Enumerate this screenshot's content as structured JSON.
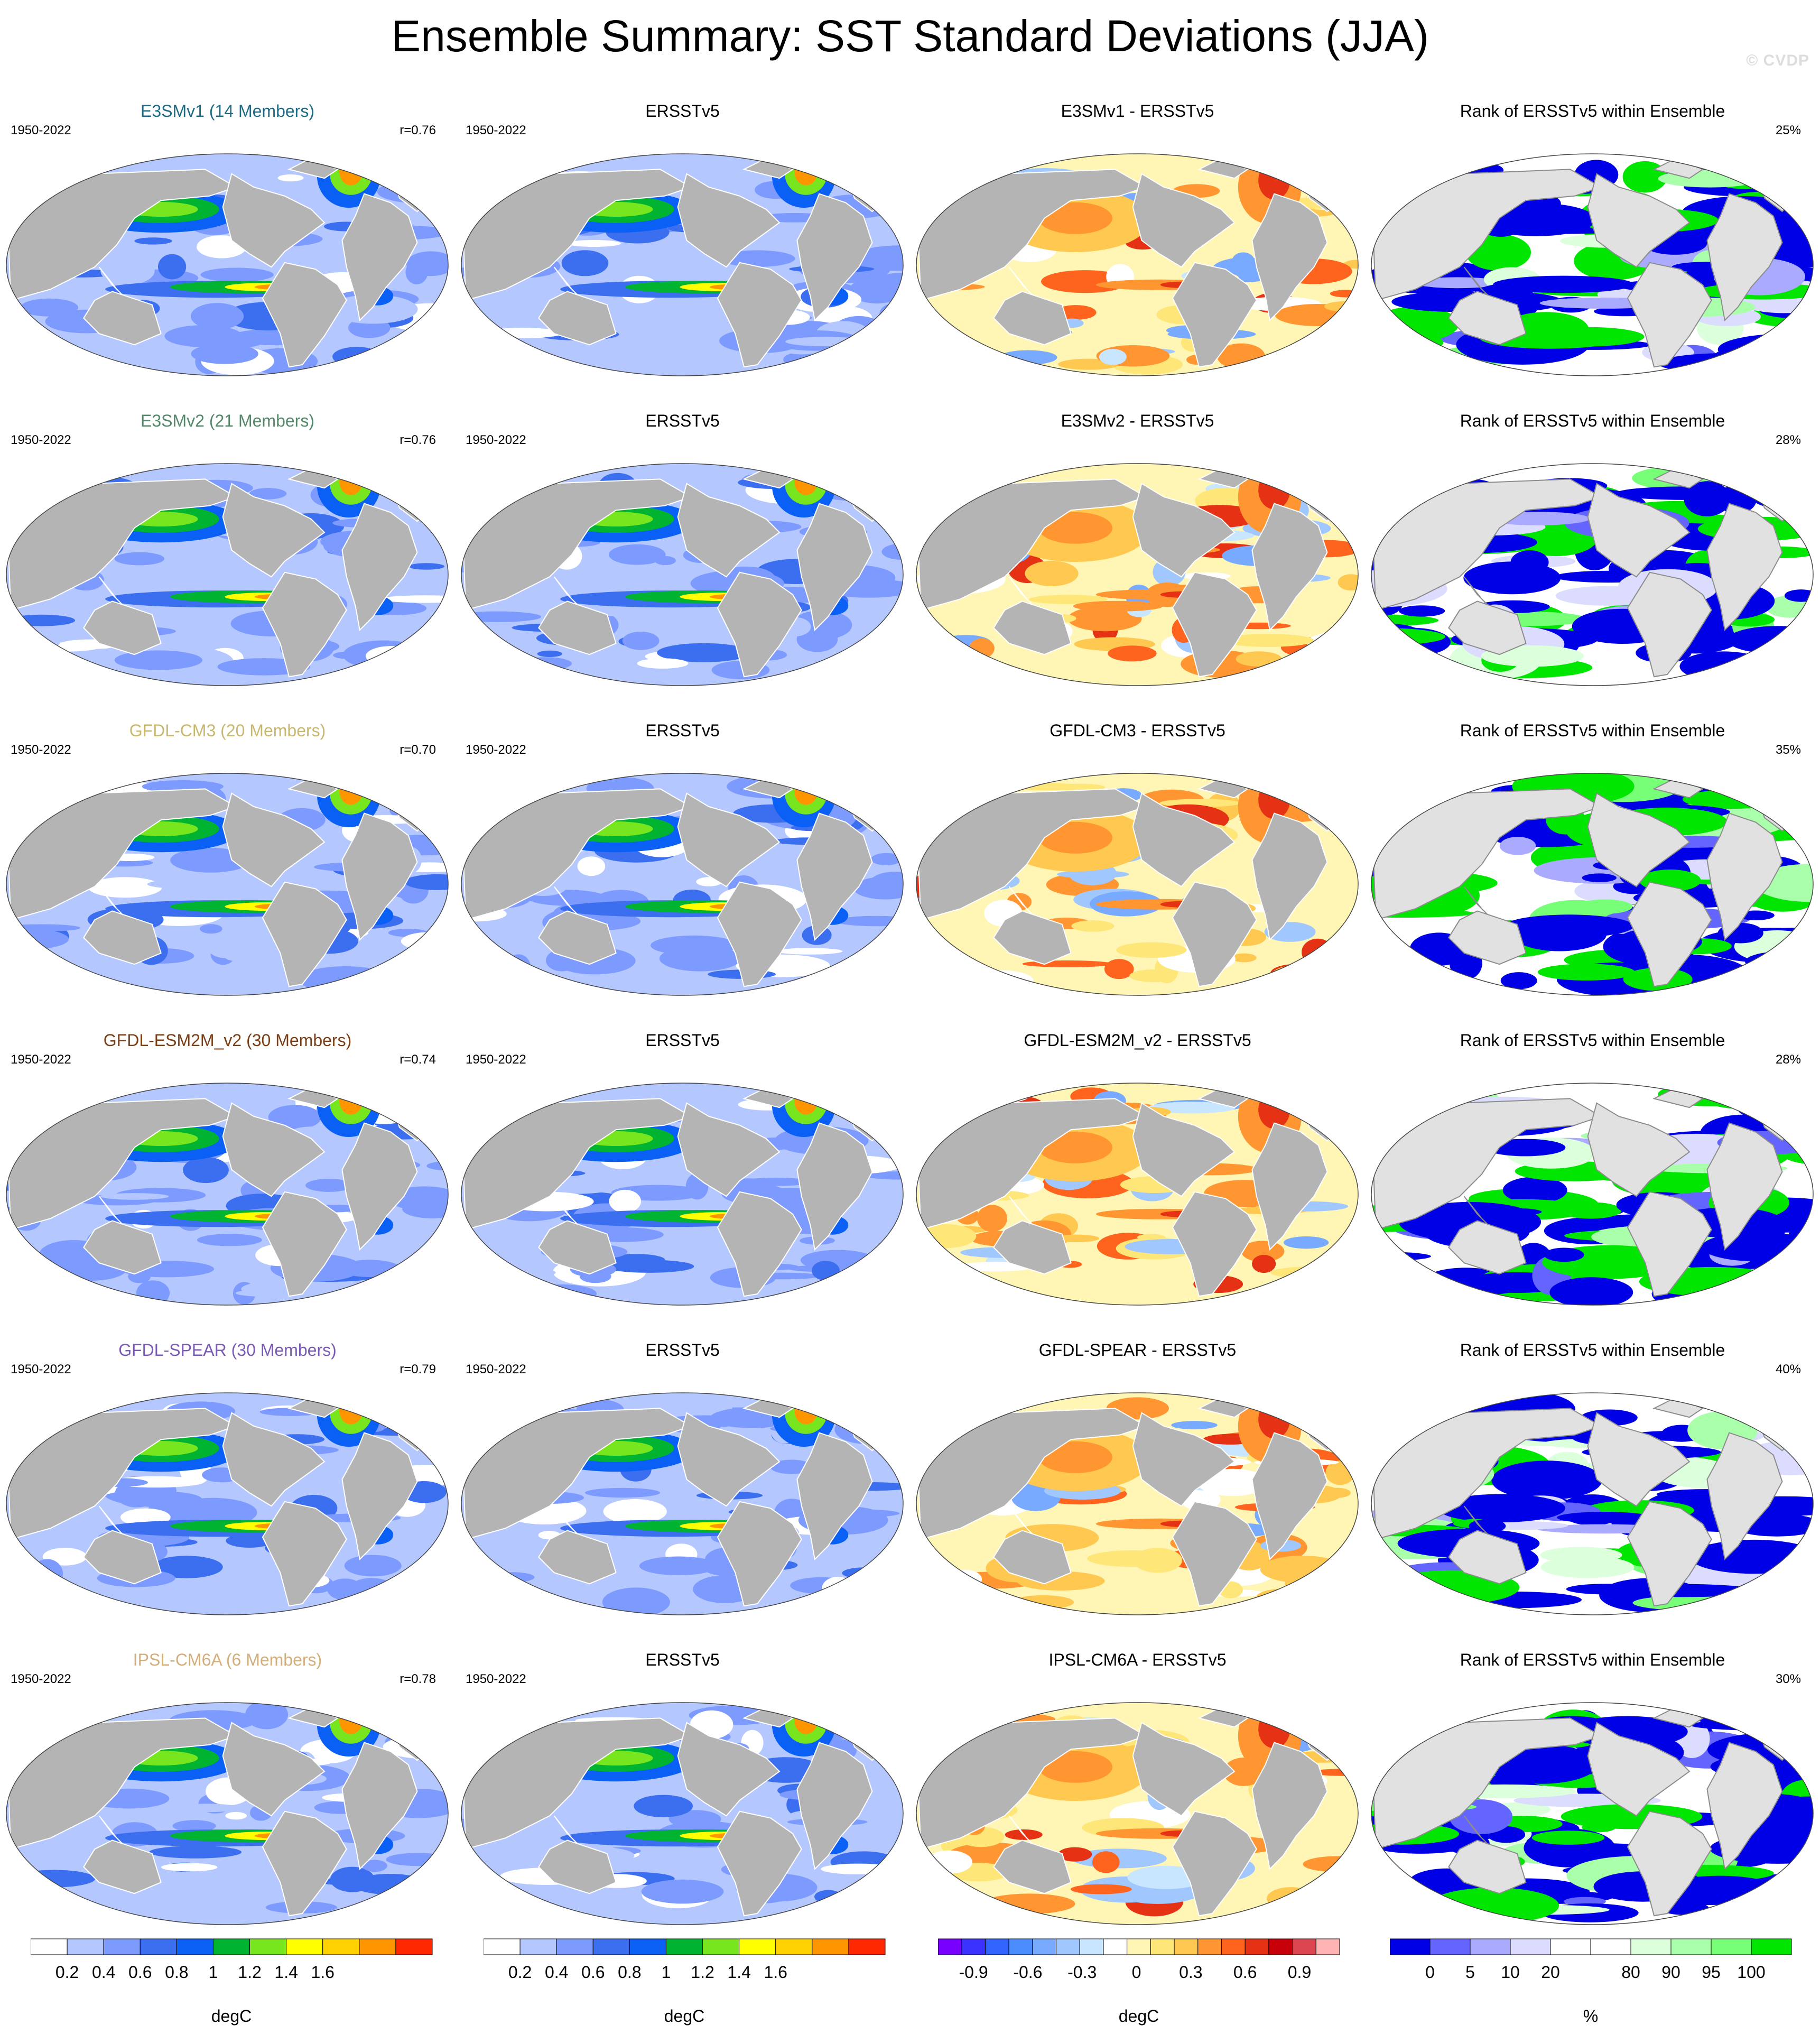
{
  "title": "Ensemble Summary: SST Standard Deviations (JJA)",
  "watermark": "© CVDP",
  "colors": {
    "land": "#b4b4b4",
    "land_rank": "#e1e1e1",
    "coast": "#ffffff",
    "coast_rank": "#8c8c8c",
    "sst_levels": [
      "#ffffff",
      "#b4c8ff",
      "#7d9bff",
      "#3c6ef0",
      "#0a5ff5",
      "#00b432",
      "#78e61e",
      "#ffff00",
      "#ffd200",
      "#ff9600",
      "#ff2800"
    ],
    "diff_levels": [
      "#7800ff",
      "#3c32ff",
      "#3264ff",
      "#4b8cff",
      "#78aaff",
      "#a0c8ff",
      "#c8e6ff",
      "#ffffff",
      "#fff5b4",
      "#ffe678",
      "#ffc850",
      "#ff9632",
      "#ff641e",
      "#e63214",
      "#c8000a",
      "#dc4650",
      "#ffb4b4"
    ],
    "rank_levels": [
      "#0000e6",
      "#6464ff",
      "#aaaaff",
      "#dcdcff",
      "#ffffff",
      "#ffffff",
      "#dcffdc",
      "#aaffaa",
      "#78ff78",
      "#00e600"
    ]
  },
  "rows": [
    {
      "model": {
        "title": "E3SMv1 (14 Members)",
        "title_color": "#1e6b85",
        "period": "1950-2022",
        "pattern_corr": "r=0.76"
      },
      "obs": {
        "title": "ERSSTv5",
        "period": "1950-2022"
      },
      "diff": {
        "title": "E3SMv1 - ERSSTv5"
      },
      "rank": {
        "title": "Rank of ERSSTv5 within Ensemble",
        "percent": "25%"
      }
    },
    {
      "model": {
        "title": "E3SMv2 (21 Members)",
        "title_color": "#55886a",
        "period": "1950-2022",
        "pattern_corr": "r=0.76"
      },
      "obs": {
        "title": "ERSSTv5",
        "period": "1950-2022"
      },
      "diff": {
        "title": "E3SMv2 - ERSSTv5"
      },
      "rank": {
        "title": "Rank of ERSSTv5 within Ensemble",
        "percent": "28%"
      }
    },
    {
      "model": {
        "title": "GFDL-CM3 (20 Members)",
        "title_color": "#c8b86e",
        "period": "1950-2022",
        "pattern_corr": "r=0.70"
      },
      "obs": {
        "title": "ERSSTv5",
        "period": "1950-2022"
      },
      "diff": {
        "title": "GFDL-CM3 - ERSSTv5"
      },
      "rank": {
        "title": "Rank of ERSSTv5 within Ensemble",
        "percent": "35%"
      }
    },
    {
      "model": {
        "title": "GFDL-ESM2M_v2 (30 Members)",
        "title_color": "#7a3f16",
        "period": "1950-2022",
        "pattern_corr": "r=0.74"
      },
      "obs": {
        "title": "ERSSTv5",
        "period": "1950-2022"
      },
      "diff": {
        "title": "GFDL-ESM2M_v2 - ERSSTv5"
      },
      "rank": {
        "title": "Rank of ERSSTv5 within Ensemble",
        "percent": "28%"
      }
    },
    {
      "model": {
        "title": "GFDL-SPEAR (30 Members)",
        "title_color": "#7a5ab4",
        "period": "1950-2022",
        "pattern_corr": "r=0.79"
      },
      "obs": {
        "title": "ERSSTv5",
        "period": "1950-2022"
      },
      "diff": {
        "title": "GFDL-SPEAR - ERSSTv5"
      },
      "rank": {
        "title": "Rank of ERSSTv5 within Ensemble",
        "percent": "40%"
      }
    },
    {
      "model": {
        "title": "IPSL-CM6A (6 Members)",
        "title_color": "#d2ae7c",
        "period": "1950-2022",
        "pattern_corr": "r=0.78"
      },
      "obs": {
        "title": "ERSSTv5",
        "period": "1950-2022"
      },
      "diff": {
        "title": "IPSL-CM6A - ERSSTv5"
      },
      "rank": {
        "title": "Rank of ERSSTv5 within Ensemble",
        "percent": "30%"
      }
    }
  ],
  "colorbars": [
    {
      "kind": "sst",
      "ticks": [
        "0.2",
        "0.4",
        "0.6",
        "0.8",
        "1",
        "1.2",
        "1.4",
        "1.6"
      ],
      "unit": "degC"
    },
    {
      "kind": "sst",
      "ticks": [
        "0.2",
        "0.4",
        "0.6",
        "0.8",
        "1",
        "1.2",
        "1.4",
        "1.6"
      ],
      "unit": "degC"
    },
    {
      "kind": "diff",
      "ticks": [
        "-0.9",
        "-0.6",
        "-0.3",
        "0",
        "0.3",
        "0.6",
        "0.9"
      ],
      "unit": "degC"
    },
    {
      "kind": "rank",
      "ticks": [
        "0",
        "5",
        "10",
        "20",
        "80",
        "90",
        "95",
        "100"
      ],
      "unit": "%"
    }
  ]
}
